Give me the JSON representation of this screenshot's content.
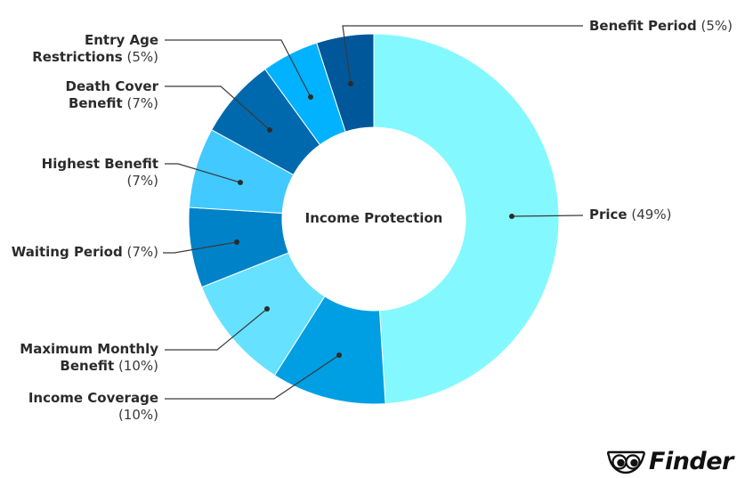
{
  "chart_data": {
    "type": "pie",
    "subtype": "donut",
    "title": "Income Protection",
    "center_label": "Income Protection",
    "start_angle_deg": 0,
    "direction": "clockwise",
    "slices": [
      {
        "name": "Price",
        "value": 49,
        "label": "Price",
        "pct_text": "(49%)",
        "color": "#84f8ff"
      },
      {
        "name": "Income Coverage",
        "value": 10,
        "label": "Income Coverage",
        "pct_text": "(10%)",
        "color": "#009ee3"
      },
      {
        "name": "Maximum Monthly Benefit",
        "value": 10,
        "label": "Maximum Monthly Benefit",
        "pct_text": "(10%)",
        "color": "#66e1ff"
      },
      {
        "name": "Waiting Period",
        "value": 7,
        "label": "Waiting Period",
        "pct_text": "(7%)",
        "color": "#0082c8"
      },
      {
        "name": "Highest Benefit",
        "value": 7,
        "label": "Highest Benefit",
        "pct_text": "(7%)",
        "color": "#42c9ff"
      },
      {
        "name": "Death Cover Benefit",
        "value": 7,
        "label": "Death Cover Benefit",
        "pct_text": "(7%)",
        "color": "#0069ad"
      },
      {
        "name": "Entry Age Restrictions",
        "value": 5,
        "label": "Entry Age Restrictions",
        "pct_text": "(5%)",
        "color": "#00b2ff"
      },
      {
        "name": "Benefit Period",
        "value": 5,
        "label": "Benefit Period",
        "pct_text": "(5%)",
        "color": "#00579a"
      }
    ],
    "legend_position": "callouts"
  },
  "labels": {
    "benefit_period": {
      "line1": "Benefit Period",
      "pct": "(5%)"
    },
    "price": {
      "line1": "Price",
      "pct": "(49%)"
    },
    "entry_age": {
      "line1": "Entry Age",
      "line2": "Restrictions",
      "pct": "(5%)"
    },
    "death_cover": {
      "line1": "Death Cover",
      "line2": "Benefit",
      "pct": "(7%)"
    },
    "highest_benefit": {
      "line1": "Highest Benefit",
      "pct": "(7%)"
    },
    "waiting_period": {
      "line1": "Waiting Period",
      "pct": "(7%)"
    },
    "max_monthly": {
      "line1": "Maximum Monthly",
      "line2": "Benefit",
      "pct": "(10%)"
    },
    "income_coverage": {
      "line1": "Income Coverage",
      "pct": "(10%)"
    }
  },
  "center": {
    "title": "Income Protection"
  },
  "brand": {
    "name": "Finder"
  }
}
